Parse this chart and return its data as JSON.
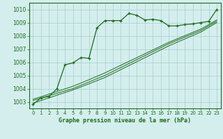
{
  "title": "Graphe pression niveau de la mer (hPa)",
  "bg_color": "#d4eeee",
  "grid_color": "#aacccc",
  "line_color": "#1a6b1a",
  "x_ticks": [
    0,
    1,
    2,
    3,
    4,
    5,
    6,
    7,
    8,
    9,
    10,
    11,
    12,
    13,
    14,
    15,
    16,
    17,
    18,
    19,
    20,
    21,
    22,
    23
  ],
  "ylim": [
    1002.5,
    1010.5
  ],
  "yticks": [
    1003,
    1004,
    1005,
    1006,
    1007,
    1008,
    1009,
    1010
  ],
  "main_line": [
    1002.8,
    1003.3,
    1003.4,
    1004.0,
    1005.8,
    1005.95,
    1006.35,
    1006.3,
    1008.6,
    1009.15,
    1009.15,
    1009.15,
    1009.7,
    1009.55,
    1009.2,
    1009.25,
    1009.15,
    1008.75,
    1008.75,
    1008.85,
    1008.9,
    1009.0,
    1009.1,
    1010.0
  ],
  "smooth_line1": [
    1003.1,
    1003.28,
    1003.46,
    1003.64,
    1003.82,
    1004.0,
    1004.25,
    1004.5,
    1004.75,
    1005.0,
    1005.3,
    1005.6,
    1005.9,
    1006.2,
    1006.5,
    1006.8,
    1007.1,
    1007.4,
    1007.65,
    1007.9,
    1008.15,
    1008.4,
    1008.75,
    1009.1
  ],
  "smooth_line2": [
    1003.2,
    1003.38,
    1003.58,
    1003.78,
    1003.98,
    1004.18,
    1004.42,
    1004.67,
    1004.93,
    1005.19,
    1005.48,
    1005.77,
    1006.06,
    1006.35,
    1006.64,
    1006.93,
    1007.22,
    1007.51,
    1007.76,
    1008.01,
    1008.26,
    1008.51,
    1008.85,
    1009.2
  ],
  "smooth_line3": [
    1002.9,
    1003.1,
    1003.3,
    1003.5,
    1003.7,
    1003.9,
    1004.13,
    1004.36,
    1004.6,
    1004.84,
    1005.14,
    1005.44,
    1005.74,
    1006.04,
    1006.34,
    1006.64,
    1006.94,
    1007.24,
    1007.5,
    1007.76,
    1008.02,
    1008.28,
    1008.64,
    1009.0
  ]
}
